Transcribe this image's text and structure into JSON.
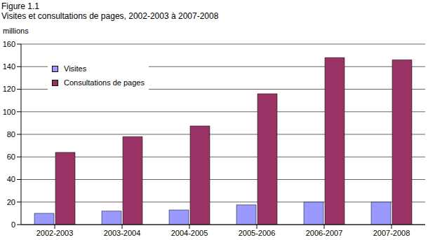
{
  "chart_data": {
    "type": "bar",
    "subtitle": "Figure 1.1",
    "title": "Visites et consultations de pages, 2002-2003 à 2007-2008",
    "y_label": "millions",
    "categories": [
      "2002-2003",
      "2003-2004",
      "2004-2005",
      "2005-2006",
      "2006-2007",
      "2007-2008"
    ],
    "series": [
      {
        "name": "Visites",
        "color": "#9999ff",
        "values": [
          10,
          12,
          13,
          17.5,
          20,
          20
        ]
      },
      {
        "name": "Consultations de pages",
        "color": "#993366",
        "values": [
          64,
          78,
          87.5,
          116,
          148,
          146
        ]
      }
    ],
    "ylim": [
      0,
      160
    ],
    "yticks": [
      0,
      20,
      40,
      60,
      80,
      100,
      120,
      140,
      160
    ],
    "grid": true,
    "legend": "upper left"
  }
}
